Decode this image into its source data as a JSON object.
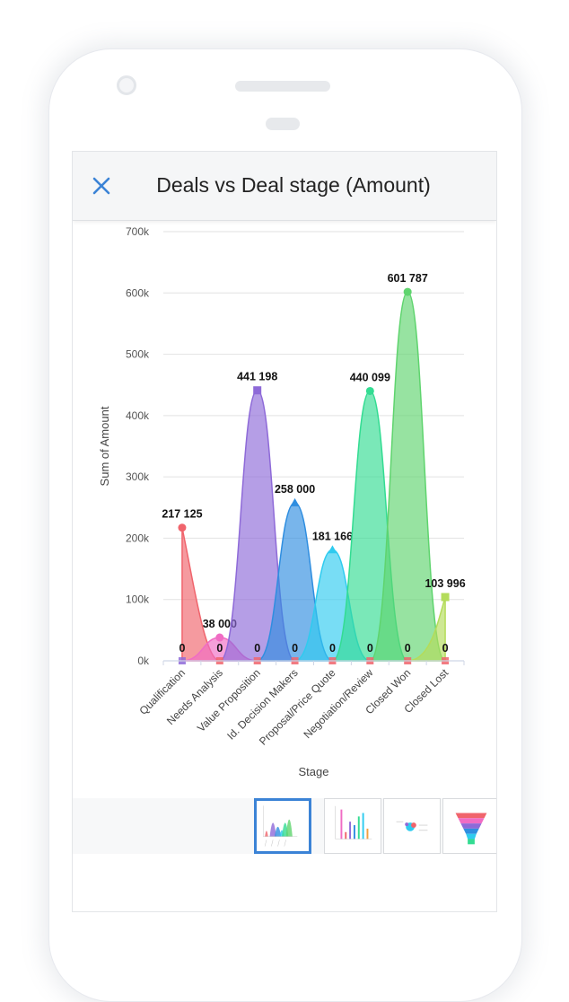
{
  "header": {
    "title": "Deals vs Deal stage (Amount)"
  },
  "colors": {
    "accent": "#3b83d6"
  },
  "thumbnails": [
    {
      "name": "area-chart-thumb",
      "active": true
    },
    {
      "name": "bar-chart-thumb",
      "active": false
    },
    {
      "name": "scatter-chart-thumb",
      "active": false
    },
    {
      "name": "funnel-chart-thumb",
      "active": false
    }
  ],
  "chart_data": {
    "type": "area",
    "xlabel": "Stage",
    "ylabel": "Sum of Amount",
    "ylim": [
      0,
      700000
    ],
    "yticks": [
      0,
      100000,
      200000,
      300000,
      400000,
      500000,
      600000,
      700000
    ],
    "ytick_labels": [
      "0k",
      "100k",
      "200k",
      "300k",
      "400k",
      "500k",
      "600k",
      "700k"
    ],
    "grid": true,
    "categories": [
      "Qualification",
      "Needs Analysis",
      "Value Proposition",
      "Id. Decision Makers",
      "Proposal/Price Quote",
      "Negotiation/Review",
      "Closed Won",
      "Closed Lost"
    ],
    "series": [
      {
        "values": [
          217125,
          0,
          0,
          0,
          0,
          0,
          0,
          0
        ],
        "color": "#f0646c",
        "label": "217 125"
      },
      {
        "values": [
          0,
          38000,
          0,
          0,
          0,
          0,
          0,
          0
        ],
        "color": "#f06cc4",
        "label": "38 000"
      },
      {
        "values": [
          0,
          0,
          441198,
          0,
          0,
          0,
          0,
          0
        ],
        "color": "#8e6ad8",
        "label": "441 198"
      },
      {
        "values": [
          0,
          0,
          0,
          258000,
          0,
          0,
          0,
          0
        ],
        "color": "#2f8ee0",
        "label": "258 000"
      },
      {
        "values": [
          0,
          0,
          0,
          0,
          181166,
          0,
          0,
          0
        ],
        "color": "#2fcbef",
        "label": "181 166"
      },
      {
        "values": [
          0,
          0,
          0,
          0,
          0,
          440099,
          0,
          0
        ],
        "color": "#33dc92",
        "label": "440 099"
      },
      {
        "values": [
          0,
          0,
          0,
          0,
          0,
          0,
          601787,
          0
        ],
        "color": "#5fd46e",
        "label": "601 787"
      },
      {
        "values": [
          0,
          0,
          0,
          0,
          0,
          0,
          0,
          103996
        ],
        "color": "#b4dc5a",
        "label": "103 996"
      }
    ],
    "zero_labels": [
      "0",
      "0",
      "0",
      "0",
      "0",
      "0",
      "0",
      "0"
    ]
  }
}
